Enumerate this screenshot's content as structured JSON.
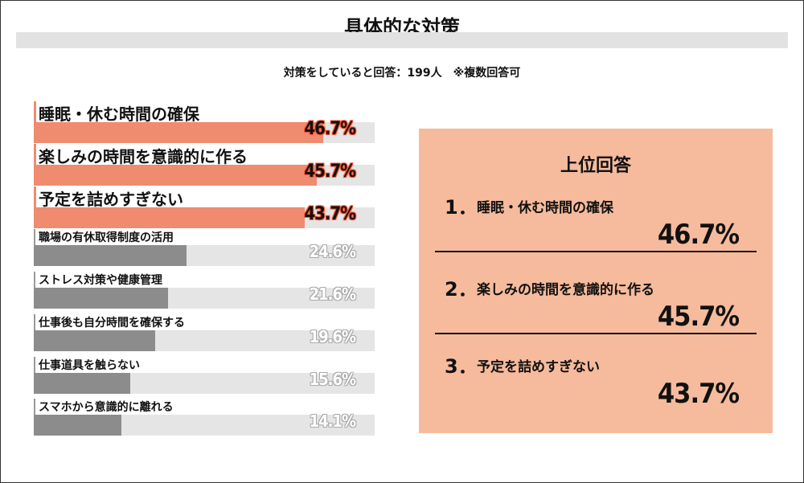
{
  "title": "具体的な対策",
  "subtitle": "対策をしていると回答：199人　※複数回答可",
  "chart_data": {
    "type": "bar",
    "orientation": "horizontal",
    "categories": [
      "睡眠・休む時間の確保",
      "楽しみの時間を意識的に作る",
      "予定を詰めすぎない",
      "職場の有休取得制度の活用",
      "ストレス対策や健康管理",
      "仕事後も自分時間を確保する",
      "仕事道具を触らない",
      "スマホから意識的に離れる"
    ],
    "values": [
      46.7,
      45.7,
      43.7,
      24.6,
      21.6,
      19.6,
      15.6,
      14.1
    ],
    "value_labels": [
      "46.7%",
      "45.7%",
      "43.7%",
      "24.6%",
      "21.6%",
      "19.6%",
      "15.6%",
      "14.1%"
    ],
    "unit": "%",
    "xlim": [
      0,
      55
    ],
    "highlight_count": 3,
    "colors": {
      "highlight": "#ef8c6f",
      "normal": "#8c8c8c",
      "track": "#e5e5e5"
    }
  },
  "panel": {
    "title": "上位回答",
    "color": "#f6bb9c",
    "items": [
      {
        "num": "1．",
        "label": "睡眠・休む時間の確保",
        "value": "46.7%"
      },
      {
        "num": "2．",
        "label": "楽しみの時間を意識的に作る",
        "value": "45.7%"
      },
      {
        "num": "3．",
        "label": "予定を詰めすぎない",
        "value": "43.7%"
      }
    ]
  }
}
